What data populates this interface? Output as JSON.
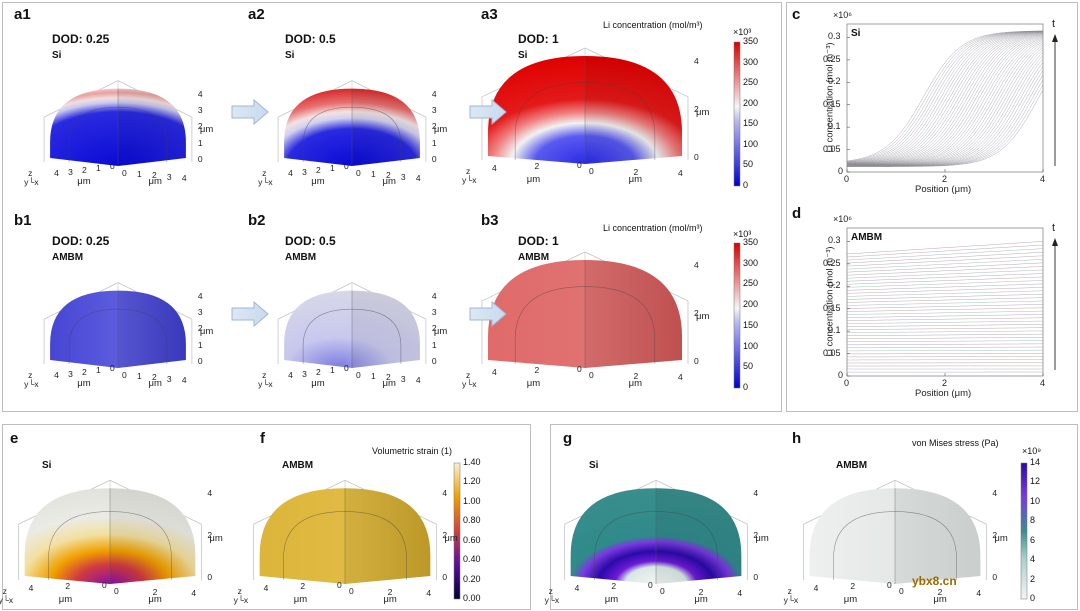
{
  "panels": {
    "a1": {
      "label": "a1",
      "dod": "DOD: 0.25",
      "material": "Si"
    },
    "a2": {
      "label": "a2",
      "dod": "DOD: 0.5",
      "material": "Si"
    },
    "a3": {
      "label": "a3",
      "dod": "DOD: 1",
      "material": "Si"
    },
    "b1": {
      "label": "b1",
      "dod": "DOD: 0.25",
      "material": "AMBM"
    },
    "b2": {
      "label": "b2",
      "dod": "DOD: 0.5",
      "material": "AMBM"
    },
    "b3": {
      "label": "b3",
      "dod": "DOD: 1",
      "material": "AMBM"
    },
    "c": {
      "label": "c",
      "material": "Si"
    },
    "d": {
      "label": "d",
      "material": "AMBM"
    },
    "e": {
      "label": "e",
      "material": "Si"
    },
    "f": {
      "label": "f",
      "material": "AMBM"
    },
    "g": {
      "label": "g",
      "material": "Si"
    },
    "h": {
      "label": "h",
      "material": "AMBM"
    }
  },
  "li_colorbar": {
    "title": "Li concentration (mol/m³)",
    "multiplier": "×10³",
    "ticks": [
      "350",
      "300",
      "250",
      "200",
      "150",
      "100",
      "50",
      "0"
    ]
  },
  "strain_colorbar": {
    "title": "Volumetric strain (1)",
    "ticks": [
      "1.40",
      "1.20",
      "1.00",
      "0.80",
      "0.60",
      "0.40",
      "0.20",
      "0.00"
    ]
  },
  "stress_colorbar": {
    "title": "von Mises stress (Pa)",
    "multiplier": "×10⁹",
    "ticks": [
      "14",
      "12",
      "10",
      "8",
      "6",
      "4",
      "2",
      "0"
    ]
  },
  "axis3d": {
    "unit": "μm",
    "z": "z",
    "x": "x",
    "y": "y",
    "ticks4": [
      "4",
      "3",
      "2",
      "1",
      "0"
    ],
    "ticks_short": [
      "4",
      "2",
      "0"
    ]
  },
  "chart_data": [
    {
      "type": "line",
      "panel": "c",
      "ylabel": "Li concentration (mol m⁻³)",
      "xlabel": "Position (μm)",
      "y_multiplier": "×10⁶",
      "x_ticks": [
        "0",
        "2",
        "4"
      ],
      "y_ticks": [
        "0",
        "0.05",
        "0.1",
        "0.15",
        "0.2",
        "0.25",
        "0.3"
      ],
      "xlim": [
        0,
        4
      ],
      "ylim": [
        0,
        0.33
      ],
      "arrow_label": "t",
      "legend": "Si"
    },
    {
      "type": "line",
      "panel": "d",
      "ylabel": "Li concentration (mol m⁻³)",
      "xlabel": "Position (μm)",
      "y_multiplier": "×10⁶",
      "x_ticks": [
        "0",
        "2",
        "4"
      ],
      "y_ticks": [
        "0",
        "0.05",
        "0.1",
        "0.15",
        "0.2",
        "0.25",
        "0.3"
      ],
      "xlim": [
        0,
        4
      ],
      "ylim": [
        0,
        0.33
      ],
      "arrow_label": "t",
      "legend": "AMBM"
    }
  ],
  "watermark": "ybx8.cn",
  "colors": {
    "high": "#e00000",
    "low": "#1a1ad0",
    "mid": "#f0f0f0",
    "strain": "#d8b23a",
    "stress_low": "#f2f2f2",
    "stress_teal": "#3d8c8c",
    "stress_purple": "#5a0cc8"
  }
}
